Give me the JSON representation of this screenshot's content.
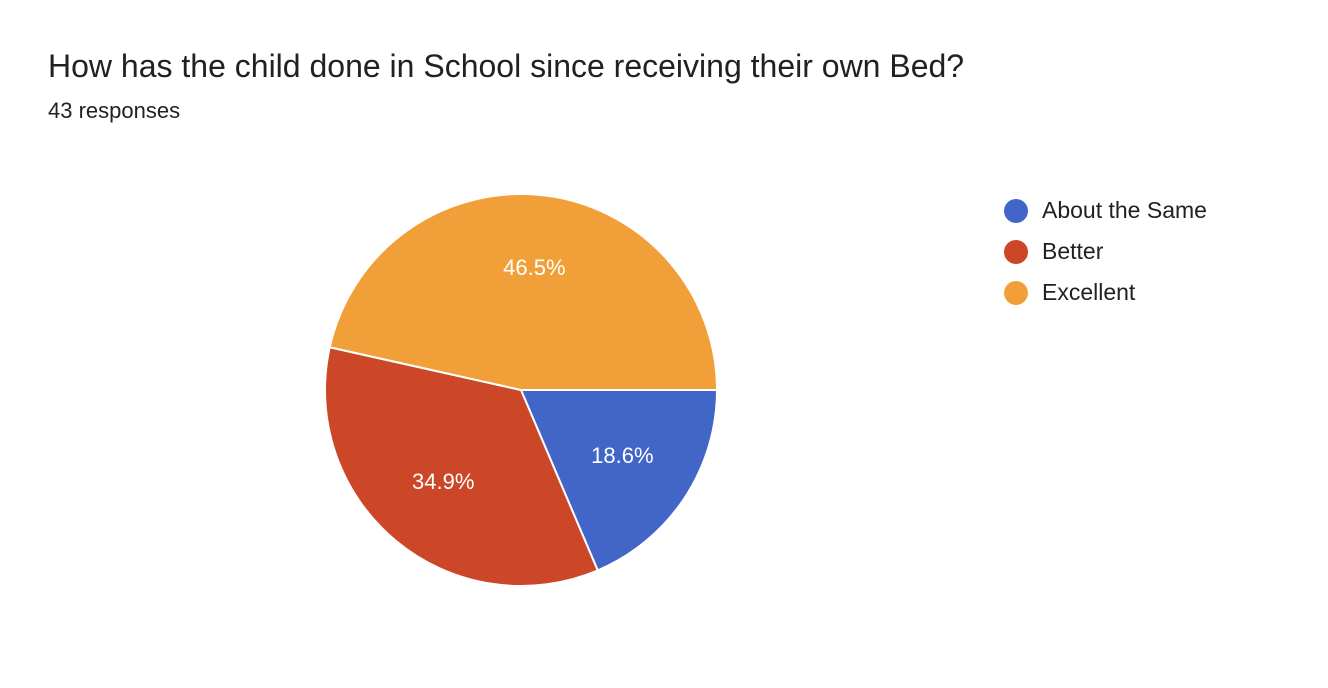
{
  "header": {
    "title": "How has the child done in School since receiving their own Bed?",
    "subtitle": "43 responses"
  },
  "chart_data": {
    "type": "pie",
    "title": "How has the child done in School since receiving their own Bed?",
    "subtitle": "43 responses",
    "legend_position": "right",
    "slices": [
      {
        "label": "About the Same",
        "value": 18.6,
        "display": "18.6%",
        "color": "#4166c8"
      },
      {
        "label": "Better",
        "value": 34.9,
        "display": "34.9%",
        "color": "#cc4628"
      },
      {
        "label": "Excellent",
        "value": 46.5,
        "display": "46.5%",
        "color": "#f1a039"
      }
    ]
  }
}
